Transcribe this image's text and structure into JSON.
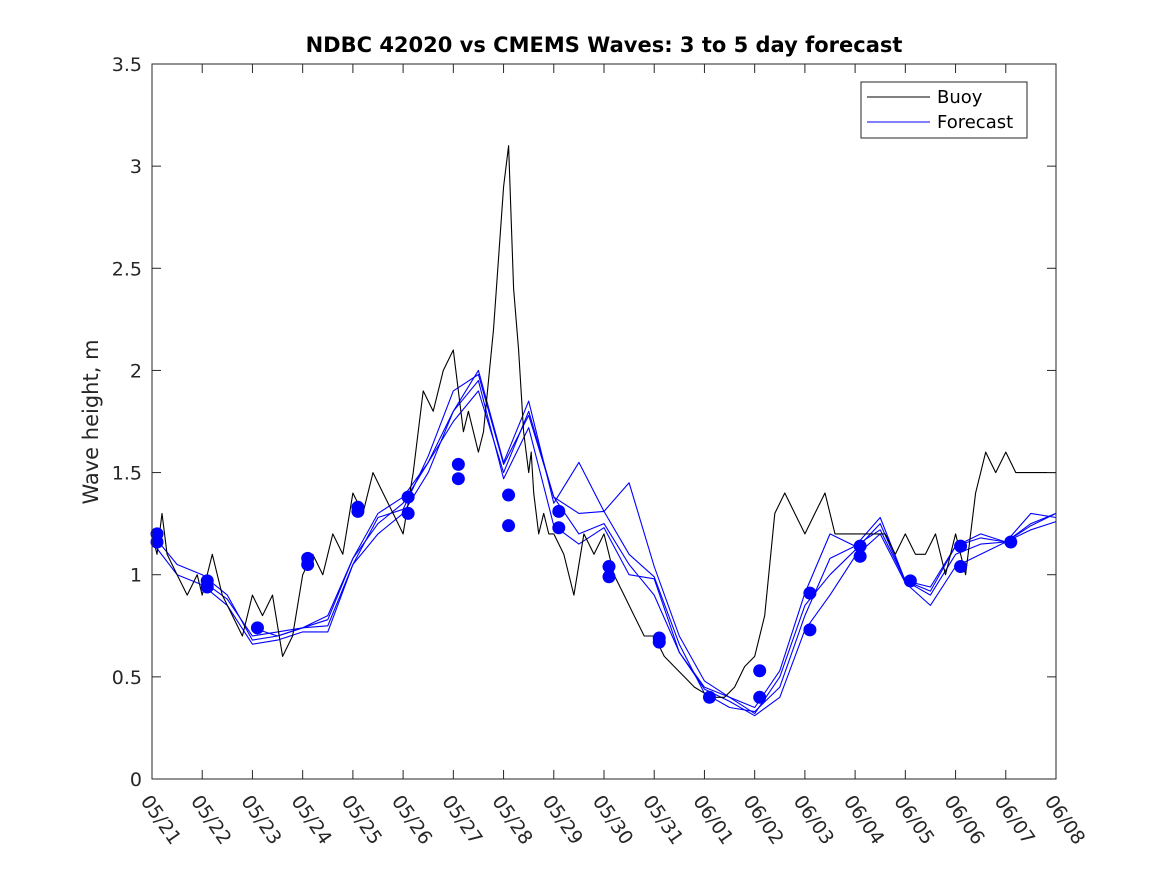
{
  "chart_data": {
    "type": "line",
    "title": "NDBC 42020 vs CMEMS Waves: 3 to 5 day forecast",
    "xlabel": "",
    "ylabel": "Wave height, m",
    "x_ticks": [
      "05/21",
      "05/22",
      "05/23",
      "05/24",
      "05/25",
      "05/26",
      "05/27",
      "05/28",
      "05/29",
      "05/30",
      "05/31",
      "06/01",
      "06/02",
      "06/03",
      "06/04",
      "06/05",
      "06/06",
      "06/07",
      "06/08"
    ],
    "y_ticks": [
      "0",
      "0.5",
      "1",
      "1.5",
      "2",
      "2.5",
      "3",
      "3.5"
    ],
    "xlim": [
      0,
      18
    ],
    "ylim": [
      0,
      3.5
    ],
    "grid": false,
    "legend_position": "top-right",
    "colors": {
      "buoy": "#000000",
      "forecast": "#0000ff"
    },
    "series": [
      {
        "name": "Buoy",
        "x": [
          0.0,
          0.1,
          0.2,
          0.3,
          0.5,
          0.7,
          0.9,
          1.0,
          1.1,
          1.2,
          1.3,
          1.4,
          1.6,
          1.8,
          2.0,
          2.2,
          2.4,
          2.6,
          2.8,
          3.0,
          3.2,
          3.4,
          3.6,
          3.8,
          4.0,
          4.2,
          4.4,
          4.6,
          4.8,
          5.0,
          5.2,
          5.4,
          5.6,
          5.8,
          6.0,
          6.2,
          6.3,
          6.4,
          6.5,
          6.6,
          6.8,
          7.0,
          7.1,
          7.2,
          7.3,
          7.4,
          7.5,
          7.55,
          7.6,
          7.65,
          7.7,
          7.8,
          7.9,
          8.0,
          8.2,
          8.4,
          8.6,
          8.8,
          9.0,
          9.2,
          9.4,
          9.6,
          9.8,
          10.0,
          10.2,
          10.4,
          10.6,
          10.8,
          11.0,
          11.2,
          11.4,
          11.6,
          11.8,
          12.0,
          12.2,
          12.4,
          12.6,
          12.8,
          13.0,
          13.2,
          13.4,
          13.6,
          13.8,
          14.0,
          14.2,
          14.4,
          14.6,
          14.8,
          15.0,
          15.2,
          15.4,
          15.6,
          15.8,
          16.0,
          16.2,
          16.4,
          16.6,
          16.8,
          17.0,
          17.2,
          17.4,
          17.6,
          17.8,
          18.0
        ],
        "y": [
          1.2,
          1.1,
          1.3,
          1.1,
          1.0,
          0.9,
          1.0,
          0.9,
          1.0,
          1.1,
          1.0,
          0.9,
          0.8,
          0.7,
          0.9,
          0.8,
          0.9,
          0.6,
          0.7,
          1.0,
          1.1,
          1.0,
          1.2,
          1.1,
          1.4,
          1.3,
          1.5,
          1.4,
          1.3,
          1.2,
          1.5,
          1.9,
          1.8,
          2.0,
          2.1,
          1.7,
          1.8,
          1.7,
          1.6,
          1.7,
          2.2,
          2.9,
          3.1,
          2.4,
          2.1,
          1.7,
          1.5,
          1.6,
          1.4,
          1.3,
          1.2,
          1.3,
          1.2,
          1.2,
          1.1,
          0.9,
          1.2,
          1.1,
          1.2,
          1.0,
          0.9,
          0.8,
          0.7,
          0.7,
          0.6,
          0.55,
          0.5,
          0.45,
          0.42,
          0.4,
          0.4,
          0.45,
          0.55,
          0.6,
          0.8,
          1.3,
          1.4,
          1.3,
          1.2,
          1.3,
          1.4,
          1.2,
          1.2,
          1.2,
          1.2,
          1.2,
          1.2,
          1.1,
          1.2,
          1.1,
          1.1,
          1.2,
          1.0,
          1.2,
          1.0,
          1.4,
          1.6,
          1.5,
          1.6,
          1.5,
          1.5,
          1.5,
          1.5,
          1.5
        ]
      },
      {
        "name": "Forecast",
        "x": [
          0.0,
          0.5,
          1.0,
          1.5,
          2.0,
          2.5,
          3.0,
          3.5,
          4.0,
          4.5,
          5.0,
          5.5,
          6.0,
          6.5,
          7.0,
          7.5,
          8.0,
          8.5,
          9.0,
          9.5,
          10.0,
          10.5,
          11.0,
          11.5,
          12.0,
          12.5,
          13.0,
          13.5,
          14.0,
          14.5,
          15.0,
          15.5,
          16.0,
          16.5,
          17.0,
          17.5,
          18.0
        ],
        "y": [
          1.2,
          1.05,
          1.0,
          0.9,
          0.68,
          0.7,
          0.74,
          0.78,
          1.08,
          1.25,
          1.35,
          1.55,
          1.75,
          1.9,
          1.5,
          1.8,
          1.38,
          1.2,
          1.25,
          1.05,
          0.9,
          0.62,
          0.45,
          0.4,
          0.32,
          0.5,
          0.85,
          1.0,
          1.12,
          1.25,
          0.97,
          0.9,
          1.1,
          1.15,
          1.16,
          1.25,
          1.3
        ]
      }
    ],
    "extra_forecast_traces": [
      {
        "x": [
          0.0,
          0.5,
          1.0,
          1.5,
          2.0,
          2.5,
          3.0,
          3.5,
          4.0,
          4.5,
          5.0,
          5.5,
          6.0,
          6.5,
          7.0,
          7.5,
          8.0,
          8.5,
          9.0,
          9.5,
          10.0,
          10.5,
          11.0,
          11.5,
          12.0,
          12.5,
          13.0,
          13.5,
          14.0,
          14.5,
          15.0,
          15.5,
          16.0,
          16.5,
          17.0,
          17.5,
          18.0
        ],
        "y": [
          1.16,
          1.0,
          0.95,
          0.85,
          0.66,
          0.68,
          0.72,
          0.72,
          1.05,
          1.2,
          1.3,
          1.5,
          1.8,
          1.95,
          1.47,
          1.72,
          1.24,
          1.15,
          1.23,
          1.0,
          0.98,
          0.62,
          0.44,
          0.38,
          0.31,
          0.4,
          0.73,
          0.9,
          1.09,
          1.2,
          0.96,
          0.85,
          1.04,
          1.1,
          1.16,
          1.22,
          1.26
        ]
      },
      {
        "x": [
          1.0,
          1.5,
          2.0,
          2.5,
          3.0,
          3.5,
          4.0,
          4.5,
          5.0,
          5.5,
          6.0,
          6.5,
          7.0,
          7.5,
          8.0,
          8.5,
          9.0,
          9.5,
          10.0,
          10.5,
          11.0,
          11.5,
          12.0,
          12.5,
          13.0,
          13.5,
          14.0,
          14.5,
          15.0,
          15.5,
          16.0,
          16.5,
          17.0,
          17.5,
          18.0
        ],
        "y": [
          0.97,
          0.88,
          0.7,
          0.72,
          0.74,
          0.8,
          1.08,
          1.3,
          1.38,
          1.55,
          1.8,
          2.0,
          1.55,
          1.85,
          1.35,
          1.55,
          1.31,
          1.45,
          1.04,
          0.7,
          0.48,
          0.4,
          0.35,
          0.53,
          0.91,
          1.2,
          1.14,
          1.28,
          0.97,
          0.94,
          1.14,
          1.18,
          1.16,
          1.3,
          1.28
        ]
      },
      {
        "x": [
          2.0,
          2.5,
          3.0,
          3.5,
          4.0,
          4.5,
          5.0,
          5.5,
          6.0,
          6.5,
          7.0,
          7.5,
          8.0,
          8.5,
          9.0,
          9.5,
          10.0,
          10.5,
          11.0,
          11.5,
          12.0,
          12.5,
          13.0,
          13.5,
          14.0,
          14.5,
          15.0,
          15.5,
          16.0,
          16.5,
          17.0,
          17.5,
          18.0
        ],
        "y": [
          0.74,
          0.7,
          0.74,
          0.75,
          1.05,
          1.28,
          1.32,
          1.58,
          1.9,
          1.98,
          1.54,
          1.78,
          1.38,
          1.3,
          1.31,
          1.1,
          0.99,
          0.66,
          0.42,
          0.35,
          0.33,
          0.45,
          0.8,
          1.08,
          1.14,
          1.22,
          0.97,
          0.92,
          1.14,
          1.2,
          1.16,
          1.24,
          1.3
        ]
      }
    ],
    "markers": {
      "x": [
        0.1,
        0.1,
        1.1,
        1.1,
        2.1,
        3.1,
        3.1,
        4.1,
        4.1,
        5.1,
        5.1,
        6.1,
        6.1,
        7.1,
        7.1,
        8.1,
        8.1,
        9.1,
        9.1,
        10.1,
        10.1,
        11.1,
        12.1,
        12.1,
        13.1,
        13.1,
        14.1,
        14.1,
        15.1,
        16.1,
        16.1,
        17.1
      ],
      "y": [
        1.2,
        1.16,
        0.97,
        0.94,
        0.74,
        1.08,
        1.05,
        1.33,
        1.31,
        1.38,
        1.3,
        1.54,
        1.47,
        1.39,
        1.24,
        1.31,
        1.23,
        1.04,
        0.99,
        0.69,
        0.67,
        0.4,
        0.53,
        0.4,
        0.91,
        0.73,
        1.14,
        1.09,
        0.97,
        1.14,
        1.04,
        1.16
      ]
    },
    "legend": [
      "Buoy",
      "Forecast"
    ]
  }
}
